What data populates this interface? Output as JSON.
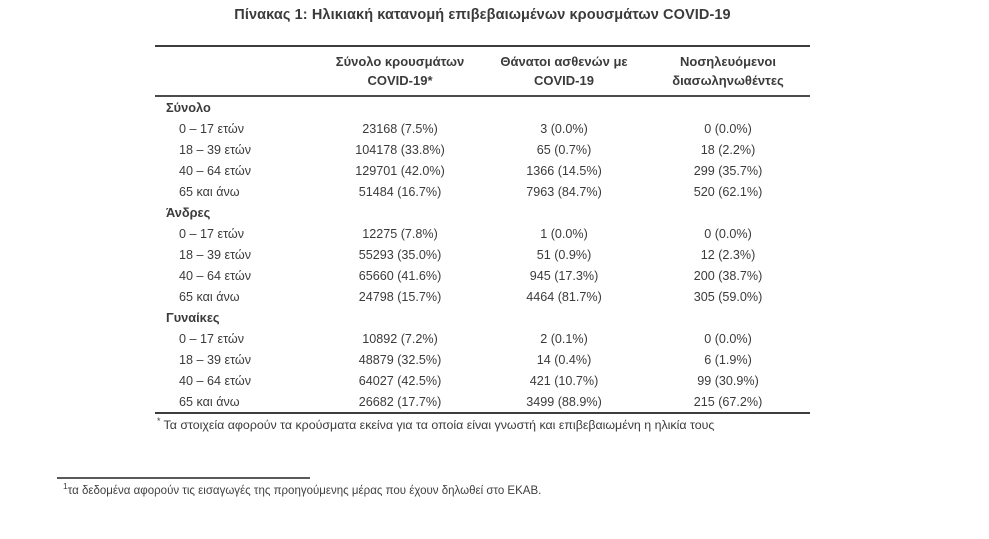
{
  "page": {
    "title": "Πίνακας 1: Ηλικιακή κατανομή επιβεβαιωμένων κρουσμάτων COVID-19"
  },
  "table": {
    "headers": [
      {
        "line1": "Σύνολο κρουσμάτων",
        "line2": "COVID-19*"
      },
      {
        "line1": "Θάνατοι ασθενών με",
        "line2": "COVID-19"
      },
      {
        "line1": "Νοσηλευόμενοι",
        "line2": "διασωληνωθέντες"
      }
    ],
    "sections": [
      {
        "label": "Σύνολο",
        "rows": [
          {
            "label": "0 – 17 ετών",
            "cells": [
              "23168 (7.5%)",
              "3 (0.0%)",
              "0 (0.0%)"
            ]
          },
          {
            "label": "18 – 39 ετών",
            "cells": [
              "104178 (33.8%)",
              "65 (0.7%)",
              "18 (2.2%)"
            ]
          },
          {
            "label": "40 – 64 ετών",
            "cells": [
              "129701 (42.0%)",
              "1366 (14.5%)",
              "299 (35.7%)"
            ]
          },
          {
            "label": "65 και άνω",
            "cells": [
              "51484 (16.7%)",
              "7963 (84.7%)",
              "520 (62.1%)"
            ]
          }
        ]
      },
      {
        "label": "Άνδρες",
        "rows": [
          {
            "label": "0 – 17 ετών",
            "cells": [
              "12275 (7.8%)",
              "1 (0.0%)",
              "0 (0.0%)"
            ]
          },
          {
            "label": "18 – 39 ετών",
            "cells": [
              "55293 (35.0%)",
              "51 (0.9%)",
              "12 (2.3%)"
            ]
          },
          {
            "label": "40 – 64 ετών",
            "cells": [
              "65660 (41.6%)",
              "945 (17.3%)",
              "200 (38.7%)"
            ]
          },
          {
            "label": "65 και άνω",
            "cells": [
              "24798 (15.7%)",
              "4464 (81.7%)",
              "305 (59.0%)"
            ]
          }
        ]
      },
      {
        "label": "Γυναίκες",
        "rows": [
          {
            "label": "0 – 17 ετών",
            "cells": [
              "10892 (7.2%)",
              "2 (0.1%)",
              "0 (0.0%)"
            ]
          },
          {
            "label": "18 – 39 ετών",
            "cells": [
              "48879 (32.5%)",
              "14 (0.4%)",
              "6 (1.9%)"
            ]
          },
          {
            "label": "40 – 64 ετών",
            "cells": [
              "64027 (42.5%)",
              "421 (10.7%)",
              "99 (30.9%)"
            ]
          },
          {
            "label": "65 και άνω",
            "cells": [
              "26682 (17.7%)",
              "3499 (88.9%)",
              "215 (67.2%)"
            ]
          }
        ]
      }
    ],
    "footnote_marker": "*",
    "footnote_text": "Τα στοιχεία αφορούν τα κρούσματα εκείνα για τα οποία είναι γνωστή και επιβεβαιωμένη η ηλικία τους"
  },
  "page_footnote": {
    "marker": "1",
    "text": "τα δεδομένα αφορούν τις εισαγωγές της προηγούμενης μέρας που έχουν δηλωθεί στο ΕΚΑΒ."
  },
  "colors": {
    "text": "#3b3b3b",
    "rule": "#3d3d3d",
    "background": "#ffffff"
  }
}
